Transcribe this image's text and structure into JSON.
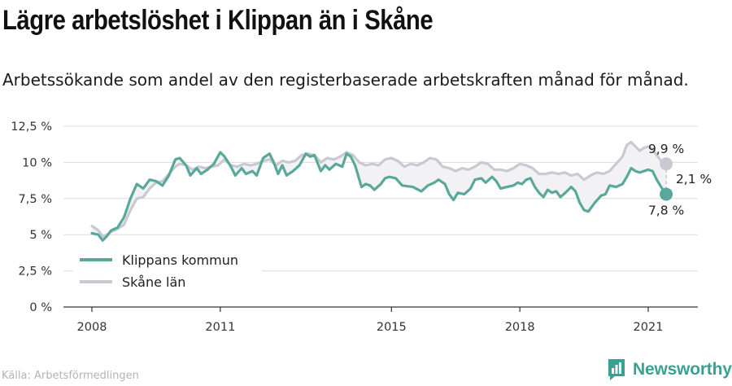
{
  "header": {
    "title": "Lägre arbetslöshet i Klippan än i Skåne",
    "subtitle": "Arbetssökande som andel av den registerbaserade arbetskraften månad för månad."
  },
  "footer": {
    "source": "Källa: Arbetsförmedlingen",
    "brand": "Newsworthy"
  },
  "colors": {
    "klippan": "#5aa89b",
    "skane": "#c9c9d3",
    "band": "#f2f2f4",
    "grid": "#dcdcdc",
    "axis": "#333333",
    "brand": "#3aa190"
  },
  "chart_data": {
    "type": "line",
    "x_range": [
      2008,
      2021.42
    ],
    "ylim": [
      0,
      12.5
    ],
    "y_ticks": [
      {
        "value": 0,
        "label": "0 %"
      },
      {
        "value": 2.5,
        "label": "2,5 %"
      },
      {
        "value": 5,
        "label": "5 %"
      },
      {
        "value": 7.5,
        "label": "7,5 %"
      },
      {
        "value": 10,
        "label": "10 %"
      },
      {
        "value": 12.5,
        "label": "12,5 %"
      }
    ],
    "x_ticks": [
      {
        "value": 2008,
        "label": "2008"
      },
      {
        "value": 2011,
        "label": "2011"
      },
      {
        "value": 2015,
        "label": "2015"
      },
      {
        "value": 2018,
        "label": "2018"
      },
      {
        "value": 2021,
        "label": "2021"
      }
    ],
    "legend": {
      "placement": "bottom-left",
      "items": [
        {
          "name": "Klippans kommun",
          "color": "#5aa89b"
        },
        {
          "name": "Skåne län",
          "color": "#c9c9d3"
        }
      ]
    },
    "annotations": {
      "skane_last": "9,9 %",
      "klippan_last": "7,8 %",
      "difference": "2,1 %"
    },
    "series": [
      {
        "name": "Klippans kommun",
        "points": [
          [
            2008.0,
            5.1
          ],
          [
            2008.15,
            5.0
          ],
          [
            2008.25,
            4.6
          ],
          [
            2008.35,
            4.9
          ],
          [
            2008.45,
            5.3
          ],
          [
            2008.6,
            5.5
          ],
          [
            2008.75,
            6.2
          ],
          [
            2008.9,
            7.5
          ],
          [
            2009.05,
            8.5
          ],
          [
            2009.2,
            8.2
          ],
          [
            2009.35,
            8.8
          ],
          [
            2009.5,
            8.7
          ],
          [
            2009.65,
            8.4
          ],
          [
            2009.8,
            9.1
          ],
          [
            2009.95,
            10.2
          ],
          [
            2010.05,
            10.3
          ],
          [
            2010.2,
            9.8
          ],
          [
            2010.3,
            9.1
          ],
          [
            2010.45,
            9.6
          ],
          [
            2010.55,
            9.2
          ],
          [
            2010.7,
            9.5
          ],
          [
            2010.85,
            9.9
          ],
          [
            2011.0,
            10.7
          ],
          [
            2011.1,
            10.4
          ],
          [
            2011.25,
            9.7
          ],
          [
            2011.35,
            9.1
          ],
          [
            2011.5,
            9.6
          ],
          [
            2011.6,
            9.2
          ],
          [
            2011.75,
            9.4
          ],
          [
            2011.85,
            9.1
          ],
          [
            2012.0,
            10.3
          ],
          [
            2012.15,
            10.6
          ],
          [
            2012.25,
            10.0
          ],
          [
            2012.35,
            9.2
          ],
          [
            2012.45,
            9.8
          ],
          [
            2012.55,
            9.1
          ],
          [
            2012.7,
            9.4
          ],
          [
            2012.85,
            9.8
          ],
          [
            2013.0,
            10.6
          ],
          [
            2013.1,
            10.4
          ],
          [
            2013.2,
            10.5
          ],
          [
            2013.35,
            9.4
          ],
          [
            2013.45,
            9.8
          ],
          [
            2013.55,
            9.5
          ],
          [
            2013.7,
            9.9
          ],
          [
            2013.85,
            9.7
          ],
          [
            2013.95,
            10.6
          ],
          [
            2014.05,
            10.4
          ],
          [
            2014.15,
            9.8
          ],
          [
            2014.3,
            8.3
          ],
          [
            2014.4,
            8.5
          ],
          [
            2014.5,
            8.4
          ],
          [
            2014.6,
            8.1
          ],
          [
            2014.75,
            8.5
          ],
          [
            2014.85,
            8.9
          ],
          [
            2014.95,
            9.0
          ],
          [
            2015.1,
            8.9
          ],
          [
            2015.25,
            8.4
          ],
          [
            2015.5,
            8.3
          ],
          [
            2015.7,
            8.0
          ],
          [
            2015.85,
            8.4
          ],
          [
            2016.0,
            8.6
          ],
          [
            2016.1,
            8.8
          ],
          [
            2016.25,
            8.5
          ],
          [
            2016.35,
            7.8
          ],
          [
            2016.45,
            7.4
          ],
          [
            2016.55,
            7.9
          ],
          [
            2016.7,
            7.8
          ],
          [
            2016.85,
            8.2
          ],
          [
            2016.95,
            8.8
          ],
          [
            2017.1,
            8.9
          ],
          [
            2017.2,
            8.6
          ],
          [
            2017.35,
            9.0
          ],
          [
            2017.45,
            8.7
          ],
          [
            2017.55,
            8.2
          ],
          [
            2017.7,
            8.3
          ],
          [
            2017.85,
            8.4
          ],
          [
            2017.95,
            8.6
          ],
          [
            2018.05,
            8.5
          ],
          [
            2018.15,
            8.8
          ],
          [
            2018.25,
            8.9
          ],
          [
            2018.35,
            8.3
          ],
          [
            2018.45,
            7.9
          ],
          [
            2018.55,
            7.6
          ],
          [
            2018.65,
            8.1
          ],
          [
            2018.75,
            7.9
          ],
          [
            2018.85,
            8.0
          ],
          [
            2018.95,
            7.6
          ],
          [
            2019.1,
            8.0
          ],
          [
            2019.2,
            8.3
          ],
          [
            2019.3,
            8.0
          ],
          [
            2019.4,
            7.2
          ],
          [
            2019.5,
            6.7
          ],
          [
            2019.6,
            6.6
          ],
          [
            2019.75,
            7.2
          ],
          [
            2019.9,
            7.7
          ],
          [
            2020.0,
            7.8
          ],
          [
            2020.1,
            8.4
          ],
          [
            2020.25,
            8.3
          ],
          [
            2020.4,
            8.5
          ],
          [
            2020.5,
            9.0
          ],
          [
            2020.6,
            9.6
          ],
          [
            2020.7,
            9.4
          ],
          [
            2020.8,
            9.3
          ],
          [
            2020.9,
            9.4
          ],
          [
            2021.0,
            9.5
          ],
          [
            2021.1,
            9.4
          ],
          [
            2021.2,
            8.8
          ],
          [
            2021.3,
            8.3
          ],
          [
            2021.42,
            7.8
          ]
        ]
      },
      {
        "name": "Skåne län",
        "points": [
          [
            2008.0,
            5.6
          ],
          [
            2008.15,
            5.3
          ],
          [
            2008.25,
            4.9
          ],
          [
            2008.35,
            5.0
          ],
          [
            2008.45,
            5.2
          ],
          [
            2008.6,
            5.4
          ],
          [
            2008.75,
            5.7
          ],
          [
            2008.9,
            6.7
          ],
          [
            2009.05,
            7.5
          ],
          [
            2009.2,
            7.6
          ],
          [
            2009.35,
            8.2
          ],
          [
            2009.5,
            8.6
          ],
          [
            2009.65,
            8.7
          ],
          [
            2009.8,
            9.2
          ],
          [
            2009.95,
            9.7
          ],
          [
            2010.05,
            9.9
          ],
          [
            2010.2,
            9.8
          ],
          [
            2010.35,
            9.5
          ],
          [
            2010.5,
            9.7
          ],
          [
            2010.65,
            9.6
          ],
          [
            2010.8,
            9.7
          ],
          [
            2010.95,
            9.8
          ],
          [
            2011.1,
            10.2
          ],
          [
            2011.25,
            9.8
          ],
          [
            2011.4,
            9.7
          ],
          [
            2011.55,
            9.9
          ],
          [
            2011.7,
            9.8
          ],
          [
            2011.85,
            9.9
          ],
          [
            2012.0,
            10.1
          ],
          [
            2012.15,
            10.2
          ],
          [
            2012.3,
            9.8
          ],
          [
            2012.45,
            10.1
          ],
          [
            2012.6,
            10.0
          ],
          [
            2012.75,
            10.1
          ],
          [
            2012.9,
            10.5
          ],
          [
            2013.05,
            10.6
          ],
          [
            2013.2,
            10.5
          ],
          [
            2013.35,
            10.0
          ],
          [
            2013.5,
            10.3
          ],
          [
            2013.65,
            10.2
          ],
          [
            2013.8,
            10.4
          ],
          [
            2013.95,
            10.7
          ],
          [
            2014.1,
            10.5
          ],
          [
            2014.25,
            10.0
          ],
          [
            2014.4,
            9.8
          ],
          [
            2014.55,
            9.9
          ],
          [
            2014.7,
            9.8
          ],
          [
            2014.85,
            10.2
          ],
          [
            2015.0,
            10.3
          ],
          [
            2015.15,
            10.1
          ],
          [
            2015.3,
            9.7
          ],
          [
            2015.45,
            9.9
          ],
          [
            2015.6,
            9.8
          ],
          [
            2015.75,
            10.0
          ],
          [
            2015.9,
            10.3
          ],
          [
            2016.05,
            10.2
          ],
          [
            2016.2,
            9.7
          ],
          [
            2016.35,
            9.6
          ],
          [
            2016.5,
            9.4
          ],
          [
            2016.65,
            9.6
          ],
          [
            2016.8,
            9.5
          ],
          [
            2016.95,
            9.7
          ],
          [
            2017.1,
            10.0
          ],
          [
            2017.25,
            9.9
          ],
          [
            2017.4,
            9.5
          ],
          [
            2017.55,
            9.5
          ],
          [
            2017.7,
            9.4
          ],
          [
            2017.85,
            9.6
          ],
          [
            2018.0,
            9.9
          ],
          [
            2018.15,
            9.8
          ],
          [
            2018.3,
            9.6
          ],
          [
            2018.45,
            9.2
          ],
          [
            2018.6,
            9.2
          ],
          [
            2018.75,
            9.3
          ],
          [
            2018.9,
            9.2
          ],
          [
            2019.05,
            9.3
          ],
          [
            2019.2,
            9.1
          ],
          [
            2019.35,
            9.2
          ],
          [
            2019.5,
            8.8
          ],
          [
            2019.65,
            9.1
          ],
          [
            2019.8,
            9.3
          ],
          [
            2019.95,
            9.2
          ],
          [
            2020.1,
            9.4
          ],
          [
            2020.25,
            9.9
          ],
          [
            2020.4,
            10.4
          ],
          [
            2020.5,
            11.2
          ],
          [
            2020.6,
            11.4
          ],
          [
            2020.7,
            11.1
          ],
          [
            2020.8,
            10.8
          ],
          [
            2020.9,
            11.0
          ],
          [
            2021.0,
            11.1
          ],
          [
            2021.1,
            10.9
          ],
          [
            2021.2,
            10.5
          ],
          [
            2021.3,
            10.1
          ],
          [
            2021.42,
            9.9
          ]
        ]
      }
    ]
  }
}
